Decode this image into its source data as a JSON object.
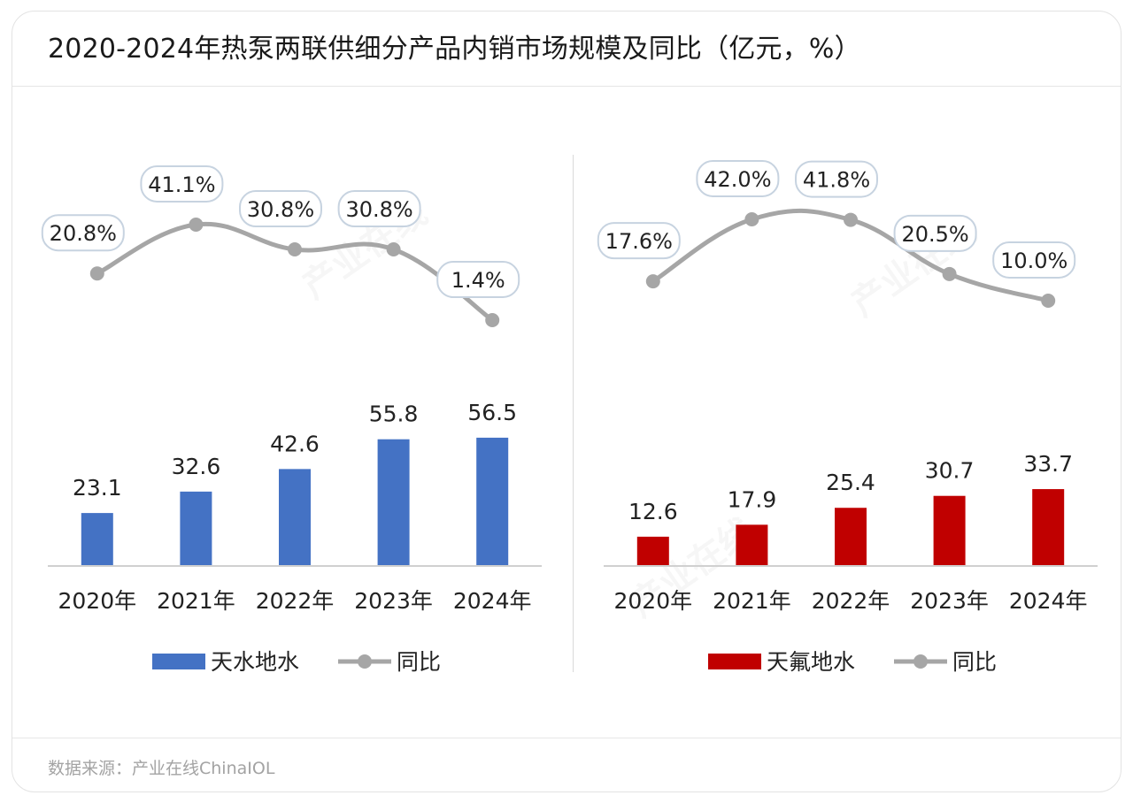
{
  "title": "2020-2024年热泵两联供细分产品内销市场规模及同比（亿元，%）",
  "source": "数据来源：产业在线ChinaIOL",
  "watermark": "产业在线",
  "chart_data": [
    {
      "type": "bar",
      "categories": [
        "2020年",
        "2021年",
        "2022年",
        "2023年",
        "2024年"
      ],
      "series": [
        {
          "name": "天水地水",
          "kind": "bar",
          "color": "#4472c4",
          "values": [
            23.1,
            32.6,
            42.6,
            55.8,
            56.5
          ],
          "labels": [
            "23.1",
            "32.6",
            "42.6",
            "55.8",
            "56.5"
          ]
        },
        {
          "name": "同比",
          "kind": "line",
          "color": "#a6a6a6",
          "values": [
            20.8,
            41.1,
            30.8,
            30.8,
            1.4
          ],
          "labels": [
            "20.8%",
            "41.1%",
            "30.8%",
            "30.8%",
            "1.4%"
          ]
        }
      ],
      "legend_position": "bottom",
      "grid": false
    },
    {
      "type": "bar",
      "categories": [
        "2020年",
        "2021年",
        "2022年",
        "2023年",
        "2024年"
      ],
      "series": [
        {
          "name": "天氟地水",
          "kind": "bar",
          "color": "#c00000",
          "values": [
            12.6,
            17.9,
            25.4,
            30.7,
            33.7
          ],
          "labels": [
            "12.6",
            "17.9",
            "25.4",
            "30.7",
            "33.7"
          ]
        },
        {
          "name": "同比",
          "kind": "line",
          "color": "#a6a6a6",
          "values": [
            17.6,
            42.0,
            41.8,
            20.5,
            10.0
          ],
          "labels": [
            "17.6%",
            "42.0%",
            "41.8%",
            "20.5%",
            "10.0%"
          ]
        }
      ],
      "legend_position": "bottom",
      "grid": false
    }
  ]
}
